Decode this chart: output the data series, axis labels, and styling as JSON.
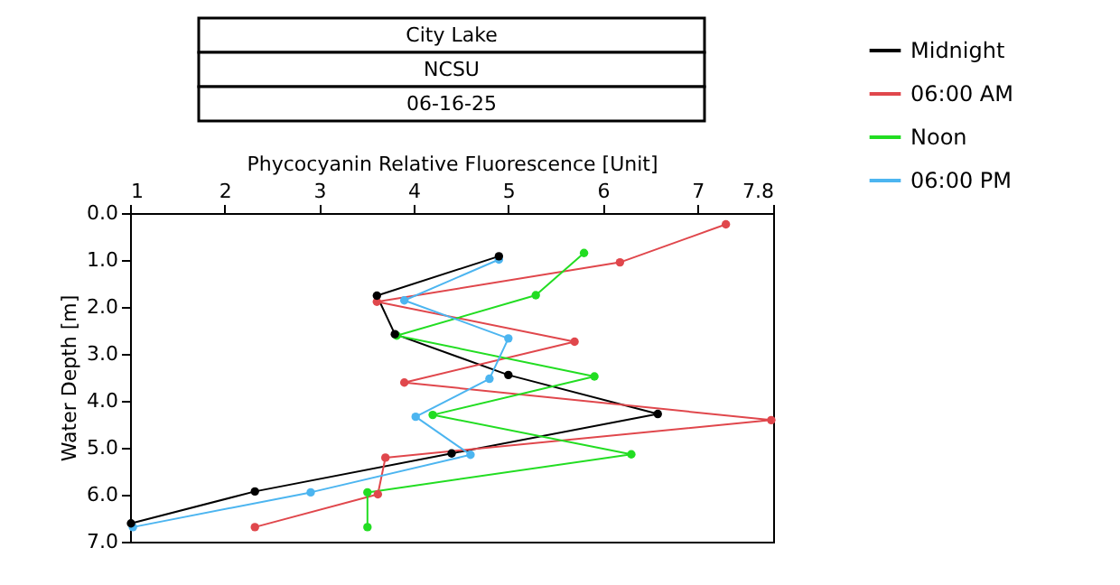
{
  "chart_data": {
    "type": "line",
    "title": "City Lake",
    "subtitle": "NCSU",
    "annotations": [
      "06-16-25"
    ],
    "xlabel": "Phycocyanin Relative Fluorescence [Unit]",
    "ylabel": "Water Depth [m]",
    "xlim": [
      1,
      7.8
    ],
    "xticks": [
      1,
      2,
      3,
      4,
      5,
      6,
      7,
      {
        "value": 7.8,
        "label": "7.8"
      }
    ],
    "ylim": [
      7.0,
      0.0
    ],
    "yticks": [
      {
        "value": 0,
        "label": "0.0"
      },
      {
        "value": 1,
        "label": "1.0"
      },
      {
        "value": 2,
        "label": "2.0"
      },
      {
        "value": 3,
        "label": "3.0"
      },
      {
        "value": 4,
        "label": "4.0"
      },
      {
        "value": 5,
        "label": "5.0"
      },
      {
        "value": 6,
        "label": "6.0"
      },
      {
        "value": 7,
        "label": "7.0"
      }
    ],
    "grid": false,
    "legend": "top right",
    "marker": "circle",
    "line_style": "solid",
    "series": [
      {
        "name": "Midnight",
        "color": "#000000",
        "x": [
          4.9,
          3.61,
          3.8,
          5.0,
          6.58,
          4.4,
          2.32,
          1.01
        ],
        "values": [
          0.92,
          1.76,
          2.58,
          3.45,
          4.28,
          5.12,
          5.93,
          6.61
        ]
      },
      {
        "name": "06:00 AM",
        "color": "#e0474c",
        "x": [
          7.3,
          6.18,
          3.61,
          5.7,
          3.9,
          7.78,
          3.7,
          3.62,
          2.32
        ],
        "values": [
          0.24,
          1.05,
          1.89,
          2.74,
          3.61,
          4.41,
          5.21,
          5.99,
          6.69
        ]
      },
      {
        "name": "Noon",
        "color": "#22dd22",
        "x": [
          5.8,
          5.29,
          3.82,
          5.91,
          4.2,
          6.3,
          3.51,
          3.51
        ],
        "values": [
          0.85,
          1.75,
          2.61,
          3.48,
          4.3,
          5.14,
          5.95,
          6.69
        ]
      },
      {
        "name": "06:00 PM",
        "color": "#4cb5f0",
        "x": [
          4.9,
          3.9,
          5.0,
          4.8,
          4.02,
          4.6,
          2.91,
          1.03
        ],
        "values": [
          0.99,
          1.86,
          2.67,
          3.53,
          4.34,
          5.15,
          5.95,
          6.69
        ]
      }
    ]
  }
}
